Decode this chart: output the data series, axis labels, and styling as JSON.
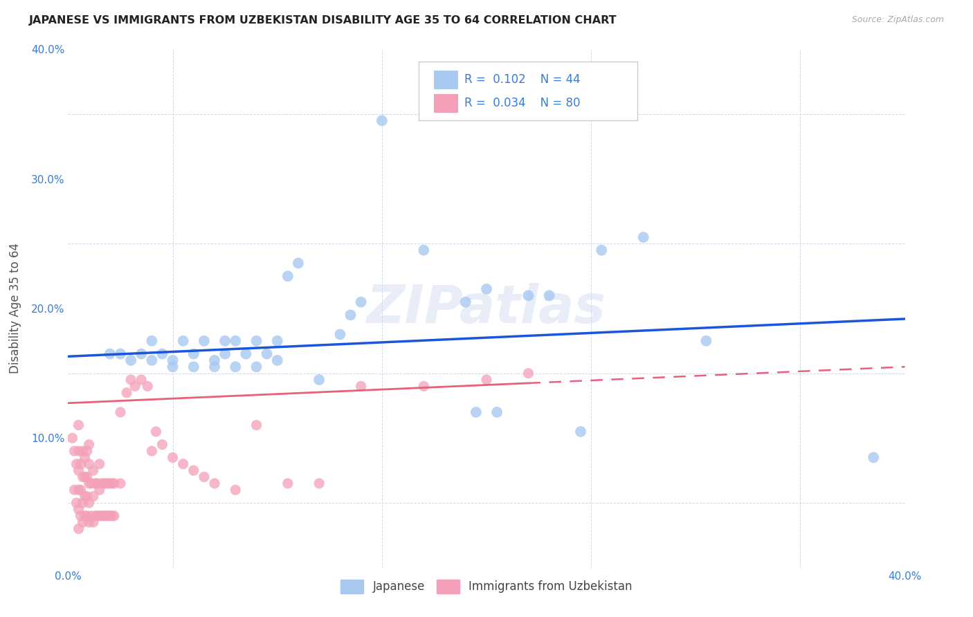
{
  "title": "JAPANESE VS IMMIGRANTS FROM UZBEKISTAN DISABILITY AGE 35 TO 64 CORRELATION CHART",
  "source": "Source: ZipAtlas.com",
  "ylabel": "Disability Age 35 to 64",
  "xlim": [
    0.0,
    0.4
  ],
  "ylim": [
    0.0,
    0.4
  ],
  "japanese_R": 0.102,
  "japanese_N": 44,
  "uzbekistan_R": 0.034,
  "uzbekistan_N": 80,
  "japanese_color": "#a8c8f0",
  "uzbekistan_color": "#f4a0b8",
  "japanese_line_color": "#1a56db",
  "uzbekistan_line_color": "#e8607a",
  "watermark": "ZIPatlas",
  "japanese_x": [
    0.02,
    0.025,
    0.03,
    0.035,
    0.04,
    0.04,
    0.045,
    0.05,
    0.05,
    0.055,
    0.06,
    0.06,
    0.065,
    0.07,
    0.07,
    0.075,
    0.075,
    0.08,
    0.08,
    0.085,
    0.09,
    0.09,
    0.095,
    0.1,
    0.1,
    0.105,
    0.11,
    0.12,
    0.13,
    0.135,
    0.14,
    0.15,
    0.17,
    0.19,
    0.195,
    0.2,
    0.205,
    0.22,
    0.23,
    0.245,
    0.255,
    0.275,
    0.305,
    0.385
  ],
  "japanese_y": [
    0.165,
    0.165,
    0.16,
    0.165,
    0.16,
    0.175,
    0.165,
    0.155,
    0.16,
    0.175,
    0.155,
    0.165,
    0.175,
    0.155,
    0.16,
    0.165,
    0.175,
    0.155,
    0.175,
    0.165,
    0.155,
    0.175,
    0.165,
    0.16,
    0.175,
    0.225,
    0.235,
    0.145,
    0.18,
    0.195,
    0.205,
    0.345,
    0.245,
    0.205,
    0.12,
    0.215,
    0.12,
    0.21,
    0.21,
    0.105,
    0.245,
    0.255,
    0.175,
    0.085
  ],
  "uzbekistan_x": [
    0.002,
    0.003,
    0.003,
    0.004,
    0.004,
    0.005,
    0.005,
    0.005,
    0.005,
    0.005,
    0.005,
    0.006,
    0.006,
    0.006,
    0.007,
    0.007,
    0.007,
    0.007,
    0.008,
    0.008,
    0.008,
    0.008,
    0.009,
    0.009,
    0.009,
    0.009,
    0.01,
    0.01,
    0.01,
    0.01,
    0.01,
    0.011,
    0.011,
    0.012,
    0.012,
    0.012,
    0.013,
    0.013,
    0.014,
    0.014,
    0.015,
    0.015,
    0.015,
    0.016,
    0.016,
    0.017,
    0.017,
    0.018,
    0.018,
    0.019,
    0.019,
    0.02,
    0.02,
    0.021,
    0.021,
    0.022,
    0.022,
    0.025,
    0.025,
    0.028,
    0.03,
    0.032,
    0.035,
    0.038,
    0.04,
    0.042,
    0.045,
    0.05,
    0.055,
    0.06,
    0.065,
    0.07,
    0.08,
    0.09,
    0.105,
    0.12,
    0.14,
    0.17,
    0.2,
    0.22
  ],
  "uzbekistan_y": [
    0.1,
    0.06,
    0.09,
    0.05,
    0.08,
    0.03,
    0.045,
    0.06,
    0.075,
    0.09,
    0.11,
    0.04,
    0.06,
    0.08,
    0.035,
    0.05,
    0.07,
    0.09,
    0.04,
    0.055,
    0.07,
    0.085,
    0.04,
    0.055,
    0.07,
    0.09,
    0.035,
    0.05,
    0.065,
    0.08,
    0.095,
    0.04,
    0.065,
    0.035,
    0.055,
    0.075,
    0.04,
    0.065,
    0.04,
    0.065,
    0.04,
    0.06,
    0.08,
    0.04,
    0.065,
    0.04,
    0.065,
    0.04,
    0.065,
    0.04,
    0.065,
    0.04,
    0.065,
    0.04,
    0.065,
    0.04,
    0.065,
    0.065,
    0.12,
    0.135,
    0.145,
    0.14,
    0.145,
    0.14,
    0.09,
    0.105,
    0.095,
    0.085,
    0.08,
    0.075,
    0.07,
    0.065,
    0.06,
    0.11,
    0.065,
    0.065,
    0.14,
    0.14,
    0.145,
    0.15
  ],
  "japanese_trend_x": [
    0.0,
    0.4
  ],
  "japanese_trend_y_start": 0.163,
  "japanese_trend_y_end": 0.192,
  "uzbekistan_trend_x": [
    0.0,
    0.4
  ],
  "uzbekistan_trend_y_start": 0.127,
  "uzbekistan_trend_y_end": 0.155
}
